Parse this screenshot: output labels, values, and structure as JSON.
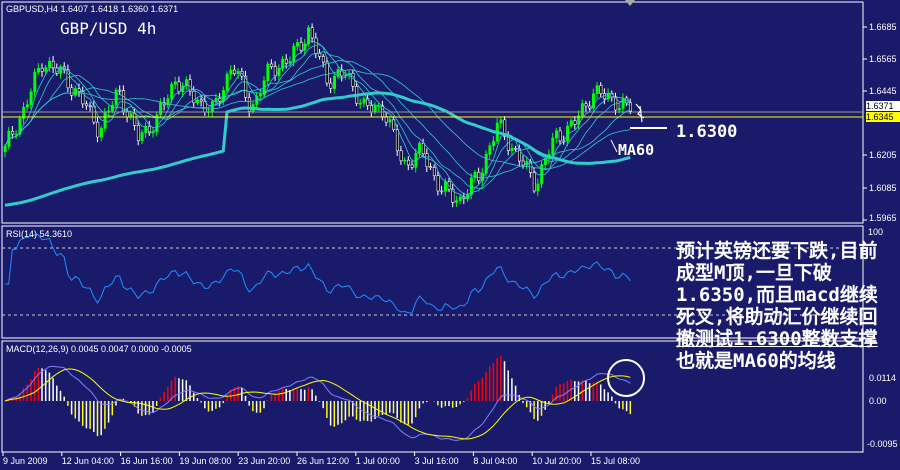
{
  "header": {
    "symbol_info": "GBPUSD,H4  1.6407 1.6418 1.6360 1.6371",
    "title": "GBP/USD 4h"
  },
  "price_axis": {
    "ticks": [
      "1.6685",
      "1.6565",
      "1.6445",
      "1.6205",
      "1.6085",
      "1.5965"
    ],
    "current_price": "1.6371",
    "line_price": "1.6345"
  },
  "rsi": {
    "label": "RSI(14) 54.3610",
    "ticks": [
      "100"
    ]
  },
  "macd": {
    "label": "MACD(12,26,9) 0.0045 0.0047 0.0000 -0.0005",
    "ticks": [
      "0.0114",
      "0.00",
      "-0.0095"
    ]
  },
  "time_axis": [
    "9 Jun 2009",
    "12 Jun 04:00",
    "16 Jun 16:00",
    "19 Jun 08:00",
    "23 Jun 20:00",
    "26 Jun 12:00",
    "1 Jul 00:00",
    "3 Jul 16:00",
    "8 Jul 04:00",
    "10 Jul 20:00",
    "15 Jul 08:00"
  ],
  "annotations": {
    "support_level": "1.6300",
    "ma_label": "MA60",
    "note_lines": [
      "预计英镑还要下跌,目前",
      "成型M顶,一旦下破",
      "1.6350,而且macd继续",
      "死叉,将助动汇价继续回",
      "撤测试1.6300整数支撑",
      "也就是MA60的均线"
    ]
  },
  "colors": {
    "background": "#1a1a6b",
    "bull": "#00ff00",
    "bear": "#ffffff",
    "ma60": "#33cccc",
    "ma_thin": "#33cccc",
    "rsi": "#1e90ff",
    "macd_line": "#8080ff",
    "signal_line": "#ffff00",
    "hist_pos": "#ff0000",
    "hist_neg": "#ffff00",
    "level_line": "#ffff00",
    "price_line": "#9a9a9a"
  },
  "chart_data": {
    "type": "candlestick",
    "symbol": "GBPUSD",
    "timeframe": "H4",
    "ylim": [
      1.5965,
      1.6745
    ],
    "close_approx": [
      1.6227,
      1.638,
      1.656,
      1.651,
      1.642,
      1.63,
      1.645,
      1.627,
      1.634,
      1.649,
      1.642,
      1.637,
      1.655,
      1.638,
      1.653,
      1.656,
      1.667,
      1.649,
      1.651,
      1.638,
      1.638,
      1.617,
      1.622,
      1.608,
      1.604,
      1.613,
      1.632,
      1.621,
      1.61,
      1.627,
      1.632,
      1.644,
      1.642,
      1.6371
    ],
    "last_bar": {
      "open": 1.6407,
      "high": 1.6418,
      "low": 1.636,
      "close": 1.6371
    },
    "horizontal_lines": [
      1.6345,
      1.6371
    ],
    "rsi_period": 14,
    "macd_params": [
      12,
      26,
      9
    ]
  }
}
